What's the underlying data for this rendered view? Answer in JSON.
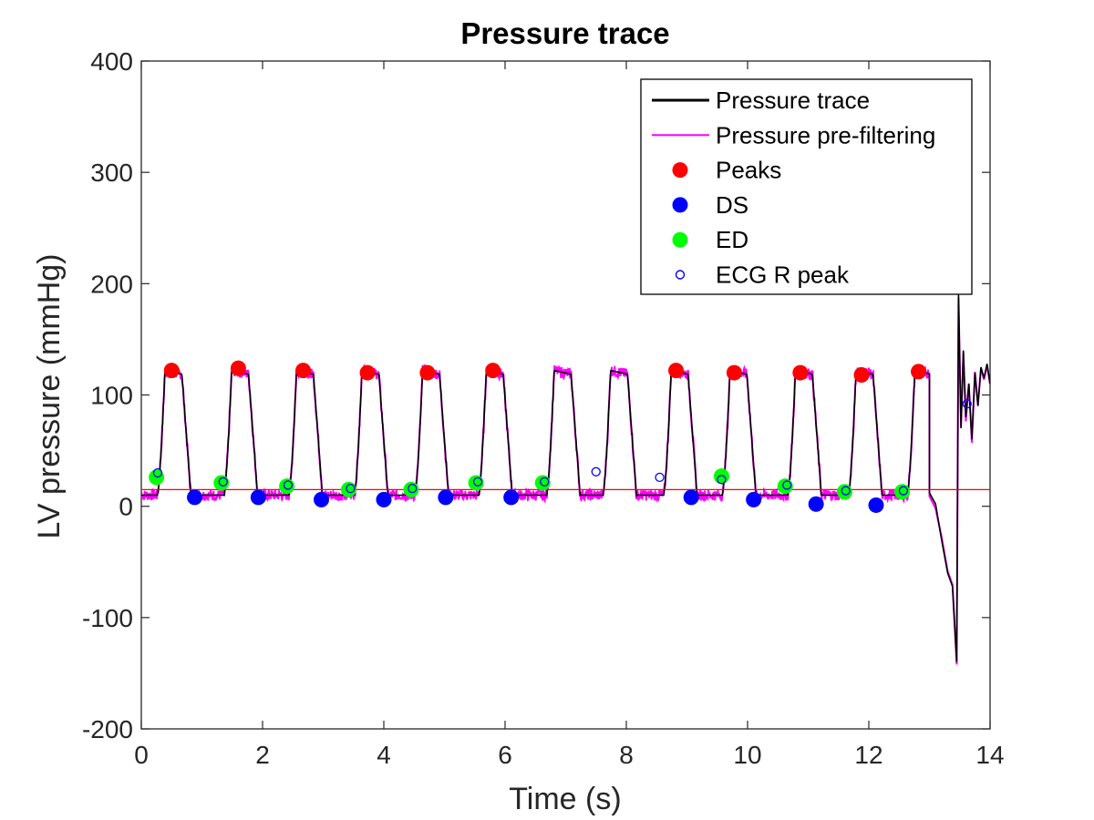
{
  "chart_data": {
    "type": "line",
    "title": "Pressure trace",
    "xlabel": "Time (s)",
    "ylabel": "LV pressure (mmHg)",
    "xlim": [
      0,
      14
    ],
    "ylim": [
      -200,
      400
    ],
    "xticks": [
      0,
      2,
      4,
      6,
      8,
      10,
      12,
      14
    ],
    "xtick_labels": [
      "0",
      "2",
      "4",
      "6",
      "8",
      "10",
      "12",
      "14"
    ],
    "yticks": [
      -200,
      -100,
      0,
      100,
      200,
      300,
      400
    ],
    "ytick_labels": [
      "-200",
      "-100",
      "0",
      "100",
      "200",
      "300",
      "400"
    ],
    "grid": false,
    "legend_position": "top-right",
    "colors": {
      "trace": "#000000",
      "prefilter": "#ff00ff",
      "peaks": "#ff0000",
      "ds": "#0000ff",
      "ed": "#00ff00",
      "ecg": "#0000ff",
      "baseline": "#ff0000"
    },
    "baseline": 15,
    "beats": [
      0.45,
      1.55,
      2.62,
      3.7,
      4.7,
      5.75,
      6.87,
      7.8,
      8.8,
      9.77,
      10.85,
      11.85,
      12.82
    ],
    "peaks": [
      {
        "x": 0.5,
        "y": 122
      },
      {
        "x": 1.6,
        "y": 124
      },
      {
        "x": 2.67,
        "y": 122
      },
      {
        "x": 3.73,
        "y": 120
      },
      {
        "x": 4.72,
        "y": 120
      },
      {
        "x": 5.8,
        "y": 122
      },
      {
        "x": 8.82,
        "y": 122
      },
      {
        "x": 9.78,
        "y": 120
      },
      {
        "x": 10.87,
        "y": 120
      },
      {
        "x": 11.88,
        "y": 118
      },
      {
        "x": 12.82,
        "y": 121
      }
    ],
    "ds": [
      {
        "x": 0.88,
        "y": 8
      },
      {
        "x": 1.93,
        "y": 8
      },
      {
        "x": 2.97,
        "y": 6
      },
      {
        "x": 4.0,
        "y": 6
      },
      {
        "x": 5.02,
        "y": 8
      },
      {
        "x": 6.1,
        "y": 8
      },
      {
        "x": 9.07,
        "y": 8
      },
      {
        "x": 10.1,
        "y": 6
      },
      {
        "x": 11.13,
        "y": 2
      },
      {
        "x": 12.12,
        "y": 1
      }
    ],
    "ed": [
      {
        "x": 0.25,
        "y": 26
      },
      {
        "x": 1.32,
        "y": 21
      },
      {
        "x": 2.4,
        "y": 18
      },
      {
        "x": 3.42,
        "y": 15
      },
      {
        "x": 4.45,
        "y": 15
      },
      {
        "x": 5.52,
        "y": 21
      },
      {
        "x": 6.62,
        "y": 21
      },
      {
        "x": 9.57,
        "y": 27
      },
      {
        "x": 10.62,
        "y": 18
      },
      {
        "x": 11.6,
        "y": 13
      },
      {
        "x": 12.55,
        "y": 13
      }
    ],
    "ecg_r_peak": [
      {
        "x": 0.27,
        "y": 30
      },
      {
        "x": 1.35,
        "y": 22
      },
      {
        "x": 2.42,
        "y": 19
      },
      {
        "x": 3.45,
        "y": 16
      },
      {
        "x": 4.47,
        "y": 16
      },
      {
        "x": 5.55,
        "y": 22
      },
      {
        "x": 6.65,
        "y": 22
      },
      {
        "x": 7.5,
        "y": 31
      },
      {
        "x": 8.55,
        "y": 26
      },
      {
        "x": 9.57,
        "y": 24
      },
      {
        "x": 10.65,
        "y": 19
      },
      {
        "x": 11.62,
        "y": 14
      },
      {
        "x": 12.57,
        "y": 14
      },
      {
        "x": 13.62,
        "y": 92
      }
    ],
    "end_segment": [
      {
        "x": 13.0,
        "y": 12
      },
      {
        "x": 13.1,
        "y": 2
      },
      {
        "x": 13.2,
        "y": -30
      },
      {
        "x": 13.3,
        "y": -60
      },
      {
        "x": 13.38,
        "y": -72
      },
      {
        "x": 13.45,
        "y": -140
      },
      {
        "x": 13.48,
        "y": 190
      },
      {
        "x": 13.52,
        "y": 70
      },
      {
        "x": 13.56,
        "y": 140
      },
      {
        "x": 13.6,
        "y": 80
      },
      {
        "x": 13.65,
        "y": 110
      },
      {
        "x": 13.7,
        "y": 60
      },
      {
        "x": 13.75,
        "y": 120
      },
      {
        "x": 13.8,
        "y": 90
      },
      {
        "x": 13.85,
        "y": 125
      },
      {
        "x": 13.9,
        "y": 115
      },
      {
        "x": 13.95,
        "y": 128
      },
      {
        "x": 14.0,
        "y": 110
      }
    ],
    "legend": [
      {
        "label": "Pressure trace",
        "kind": "line",
        "color": "#000000"
      },
      {
        "label": "Pressure pre-filtering",
        "kind": "line",
        "color": "#ff00ff"
      },
      {
        "label": "Peaks",
        "kind": "dot",
        "color": "#ff0000"
      },
      {
        "label": "DS",
        "kind": "dot",
        "color": "#0000ff"
      },
      {
        "label": "ED",
        "kind": "dot",
        "color": "#00ff00"
      },
      {
        "label": "ECG R peak",
        "kind": "ring",
        "color": "#0000ff"
      }
    ]
  }
}
